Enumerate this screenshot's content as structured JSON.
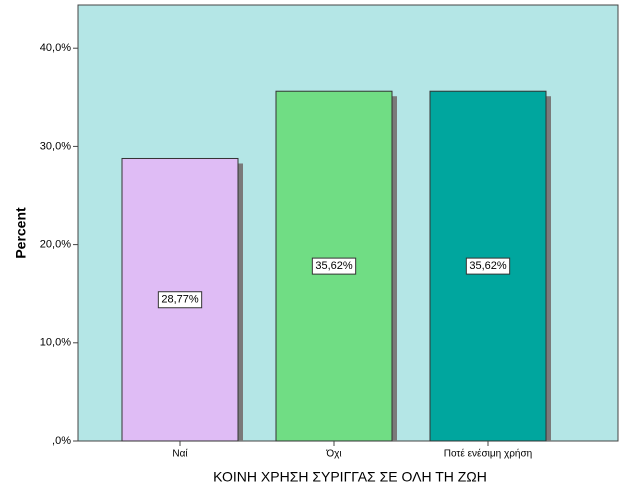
{
  "chart_data": {
    "type": "bar",
    "x_label": "ΚΟΙΝΗ ΧΡΗΣΗ ΣΥΡΙΓΓΑΣ ΣΕ ΟΛΗ ΤΗ ΖΩΗ",
    "y_label": "Percent",
    "categories": [
      "Ναί",
      "Όχι",
      "Ποτέ ενέσιμη χρήση"
    ],
    "values": [
      28.77,
      35.62,
      35.62
    ],
    "value_labels": [
      "28,77%",
      "35,62%",
      "35,62%"
    ],
    "colors": [
      "#dfbcf5",
      "#70dd84",
      "#00a69e"
    ],
    "ylim": [
      0,
      44.4
    ],
    "yticks": [
      {
        "value": 0,
        "label": ",0%"
      },
      {
        "value": 10,
        "label": "10,0%"
      },
      {
        "value": 20,
        "label": "20,0%"
      },
      {
        "value": 30,
        "label": "30,0%"
      },
      {
        "value": 40,
        "label": "40,0%"
      }
    ]
  }
}
